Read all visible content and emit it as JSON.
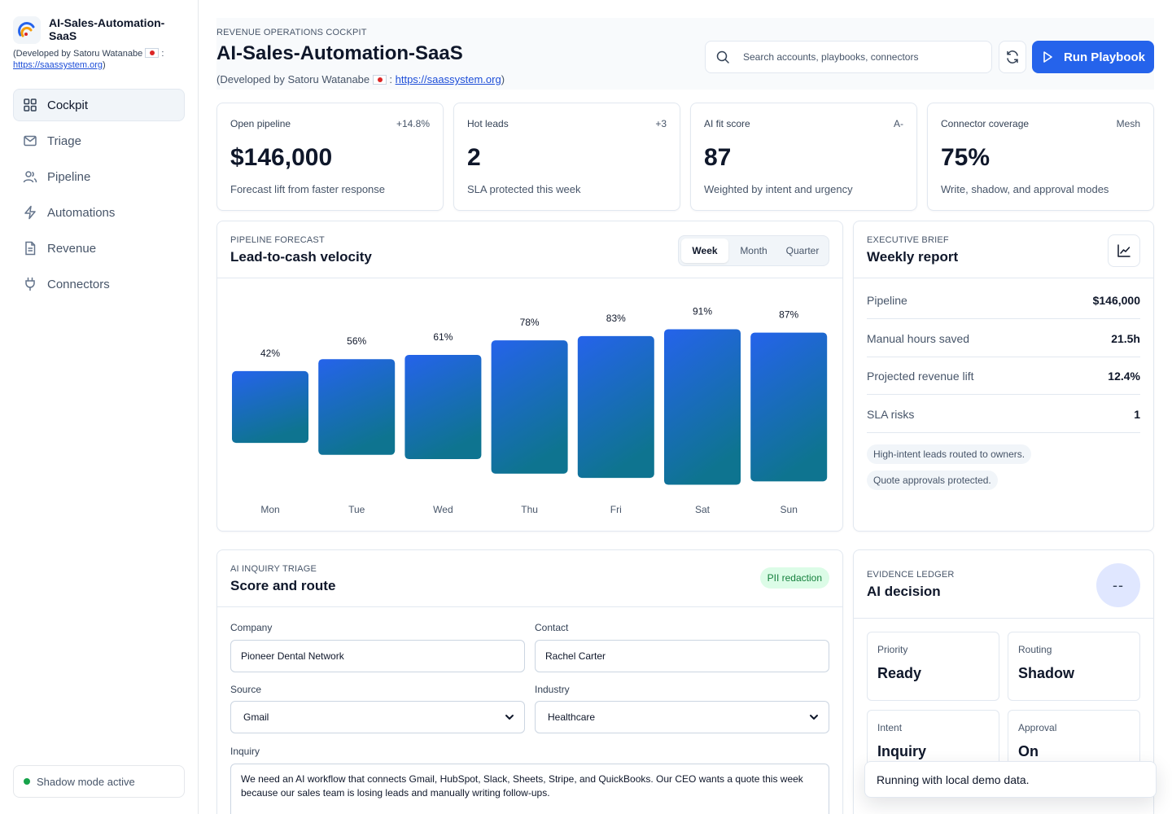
{
  "brand": {
    "name": "AI-Sales-Automation-SaaS",
    "credit_prefix": "(Developed by Satoru Watanabe",
    "credit_sep": " :",
    "url": "https://saassystem.org",
    "credit_suffix": ")"
  },
  "nav": [
    {
      "label": "Cockpit",
      "icon": "grid-icon",
      "active": true
    },
    {
      "label": "Triage",
      "icon": "mail-icon",
      "active": false
    },
    {
      "label": "Pipeline",
      "icon": "users-icon",
      "active": false
    },
    {
      "label": "Automations",
      "icon": "bolt-icon",
      "active": false
    },
    {
      "label": "Revenue",
      "icon": "file-icon",
      "active": false
    },
    {
      "label": "Connectors",
      "icon": "plug-icon",
      "active": false
    }
  ],
  "status": {
    "label": "Shadow mode active",
    "color": "#16a34a"
  },
  "header": {
    "eyebrow": "REVENUE OPERATIONS COCKPIT",
    "title": "AI-Sales-Automation-SaaS",
    "credit_prefix": "(Developed by Satoru Watanabe",
    "credit_sep": " :",
    "url": "https://saassystem.org",
    "credit_suffix": ")",
    "search_placeholder": "Search accounts, playbooks, connectors",
    "run_label": "Run Playbook",
    "accent": "#2563eb"
  },
  "kpis": [
    {
      "label": "Open pipeline",
      "badge": "+14.8%",
      "value": "$146,000",
      "note": "Forecast lift from faster response"
    },
    {
      "label": "Hot leads",
      "badge": "+3",
      "value": "2",
      "note": "SLA protected this week"
    },
    {
      "label": "AI fit score",
      "badge": "A-",
      "value": "87",
      "note": "Weighted by intent and urgency"
    },
    {
      "label": "Connector coverage",
      "badge": "Mesh",
      "value": "75%",
      "note": "Write, shadow, and approval modes"
    }
  ],
  "forecast": {
    "eyebrow": "PIPELINE FORECAST",
    "title": "Lead-to-cash velocity",
    "tabs": [
      {
        "label": "Week",
        "active": true
      },
      {
        "label": "Month",
        "active": false
      },
      {
        "label": "Quarter",
        "active": false
      }
    ]
  },
  "chart_data": {
    "type": "bar",
    "categories": [
      "Mon",
      "Tue",
      "Wed",
      "Thu",
      "Fri",
      "Sat",
      "Sun"
    ],
    "values": [
      42,
      56,
      61,
      78,
      83,
      91,
      87
    ],
    "labels": [
      "42%",
      "56%",
      "61%",
      "78%",
      "83%",
      "91%",
      "87%"
    ],
    "title": "",
    "xlabel": "",
    "ylabel": "",
    "grid": false,
    "colors": {
      "top": "#2563eb",
      "bottom": "#0e7490"
    }
  },
  "brief": {
    "eyebrow": "EXECUTIVE BRIEF",
    "title": "Weekly report",
    "rows": [
      {
        "k": "Pipeline",
        "v": "$146,000"
      },
      {
        "k": "Manual hours saved",
        "v": "21.5h"
      },
      {
        "k": "Projected revenue lift",
        "v": "12.4%"
      },
      {
        "k": "SLA risks",
        "v": "1"
      }
    ],
    "chips": [
      "High-intent leads routed to owners.",
      "Quote approvals protected."
    ]
  },
  "triage": {
    "eyebrow": "AI INQUIRY TRIAGE",
    "title": "Score and route",
    "badge": "PII redaction",
    "company_label": "Company",
    "company_value": "Pioneer Dental Network",
    "contact_label": "Contact",
    "contact_value": "Rachel Carter",
    "source_label": "Source",
    "source_value": "Gmail",
    "industry_label": "Industry",
    "industry_value": "Healthcare",
    "inquiry_label": "Inquiry",
    "inquiry_value": "We need an AI workflow that connects Gmail, HubSpot, Slack, Sheets, Stripe, and QuickBooks. Our CEO wants a quote this week because our sales team is losing leads and manually writing follow-ups."
  },
  "ledger": {
    "eyebrow": "EVIDENCE LEDGER",
    "title": "AI decision",
    "score": "--",
    "cards": [
      {
        "label": "Priority",
        "value": "Ready"
      },
      {
        "label": "Routing",
        "value": "Shadow"
      },
      {
        "label": "Intent",
        "value": "Inquiry"
      },
      {
        "label": "Approval",
        "value": "On"
      }
    ]
  },
  "toast": "Running with local demo data."
}
